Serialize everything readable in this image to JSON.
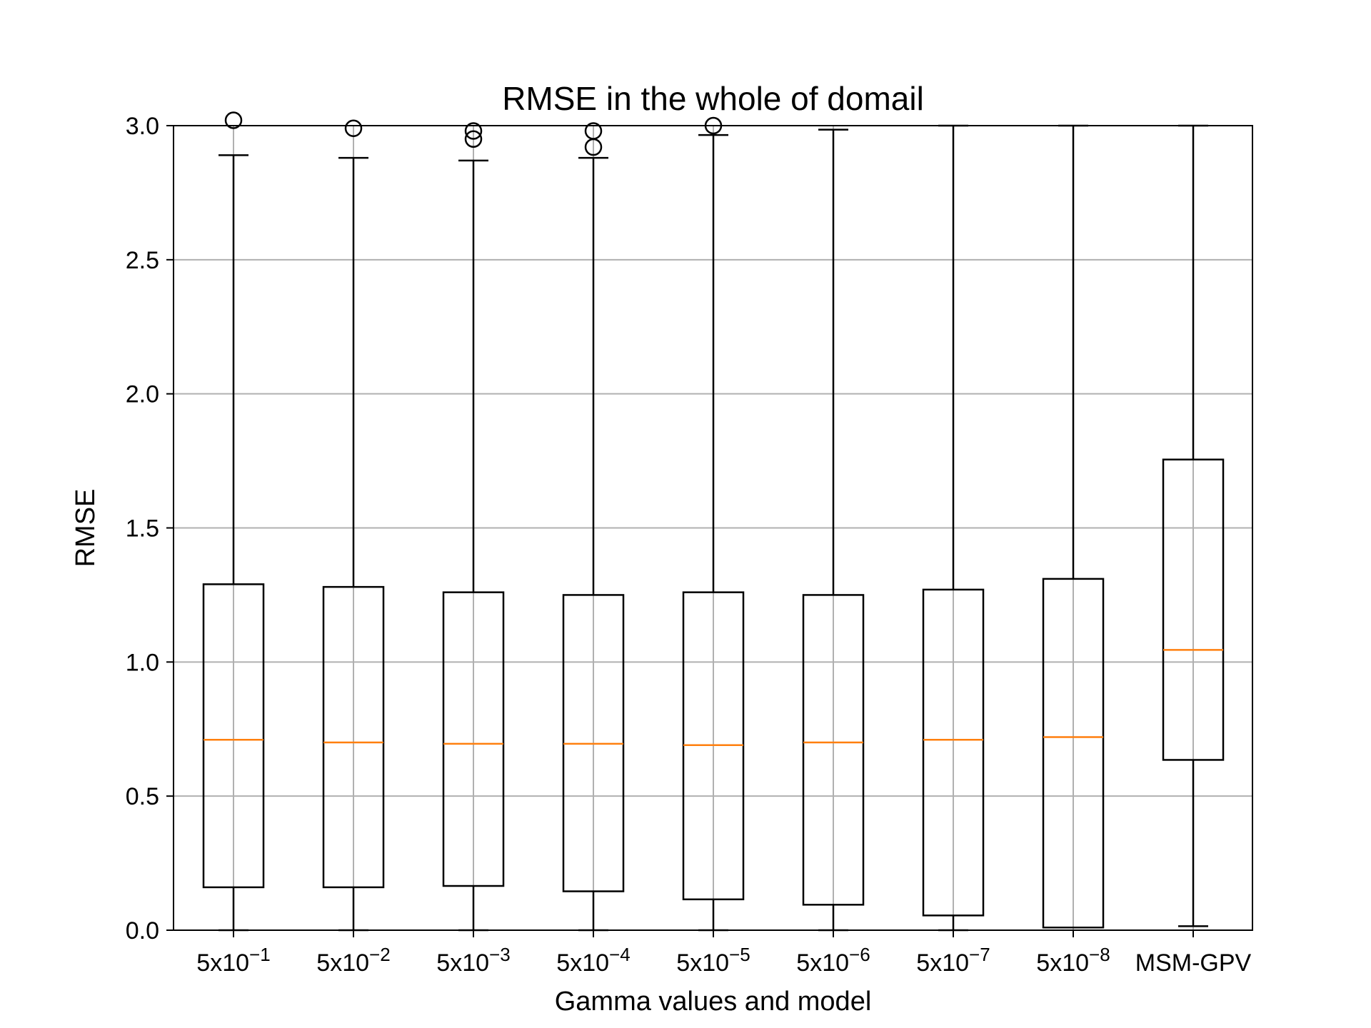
{
  "chart_data": {
    "type": "boxplot",
    "title": "RMSE in the whole of domail",
    "xlabel": "Gamma values and model",
    "ylabel": "RMSE",
    "ylim": [
      0.0,
      3.0
    ],
    "yticks": [
      "0.0",
      "0.5",
      "1.0",
      "1.5",
      "2.0",
      "2.5",
      "3.0"
    ],
    "grid": true,
    "colors": {
      "box": "#000000",
      "median": "#ff7f0e",
      "grid": "#b0b0b0"
    },
    "categories": [
      {
        "base": "5x10",
        "exp": "−1",
        "label": "MSM-GPV"
      },
      {
        "base": "5x10",
        "exp": "−2"
      },
      {
        "base": "5x10",
        "exp": "−3"
      },
      {
        "base": "5x10",
        "exp": "−4"
      },
      {
        "base": "5x10",
        "exp": "−5"
      },
      {
        "base": "5x10",
        "exp": "−6"
      },
      {
        "base": "5x10",
        "exp": "−7"
      },
      {
        "base": "5x10",
        "exp": "−8"
      },
      {
        "label": "MSM-GPV"
      }
    ],
    "boxes": [
      {
        "whisker_low": 0.0,
        "q1": 0.16,
        "median": 0.71,
        "q3": 1.29,
        "whisker_high": 2.89,
        "fliers": [
          3.02
        ]
      },
      {
        "whisker_low": 0.0,
        "q1": 0.16,
        "median": 0.7,
        "q3": 1.28,
        "whisker_high": 2.88,
        "fliers": [
          2.99
        ]
      },
      {
        "whisker_low": 0.0,
        "q1": 0.165,
        "median": 0.695,
        "q3": 1.26,
        "whisker_high": 2.87,
        "fliers": [
          2.95,
          2.98
        ]
      },
      {
        "whisker_low": 0.0,
        "q1": 0.145,
        "median": 0.695,
        "q3": 1.25,
        "whisker_high": 2.88,
        "fliers": [
          2.92,
          2.98
        ]
      },
      {
        "whisker_low": 0.0,
        "q1": 0.115,
        "median": 0.69,
        "q3": 1.26,
        "whisker_high": 2.965,
        "fliers": [
          3.0
        ]
      },
      {
        "whisker_low": 0.0,
        "q1": 0.095,
        "median": 0.7,
        "q3": 1.25,
        "whisker_high": 2.985,
        "fliers": []
      },
      {
        "whisker_low": 0.0,
        "q1": 0.055,
        "median": 0.71,
        "q3": 1.27,
        "whisker_high": 3.0,
        "fliers": []
      },
      {
        "whisker_low": 0.01,
        "q1": 0.01,
        "median": 0.72,
        "q3": 1.31,
        "whisker_high": 3.0,
        "fliers": []
      },
      {
        "whisker_low": 0.015,
        "q1": 0.635,
        "median": 1.045,
        "q3": 1.755,
        "whisker_high": 3.0,
        "fliers": []
      }
    ]
  }
}
